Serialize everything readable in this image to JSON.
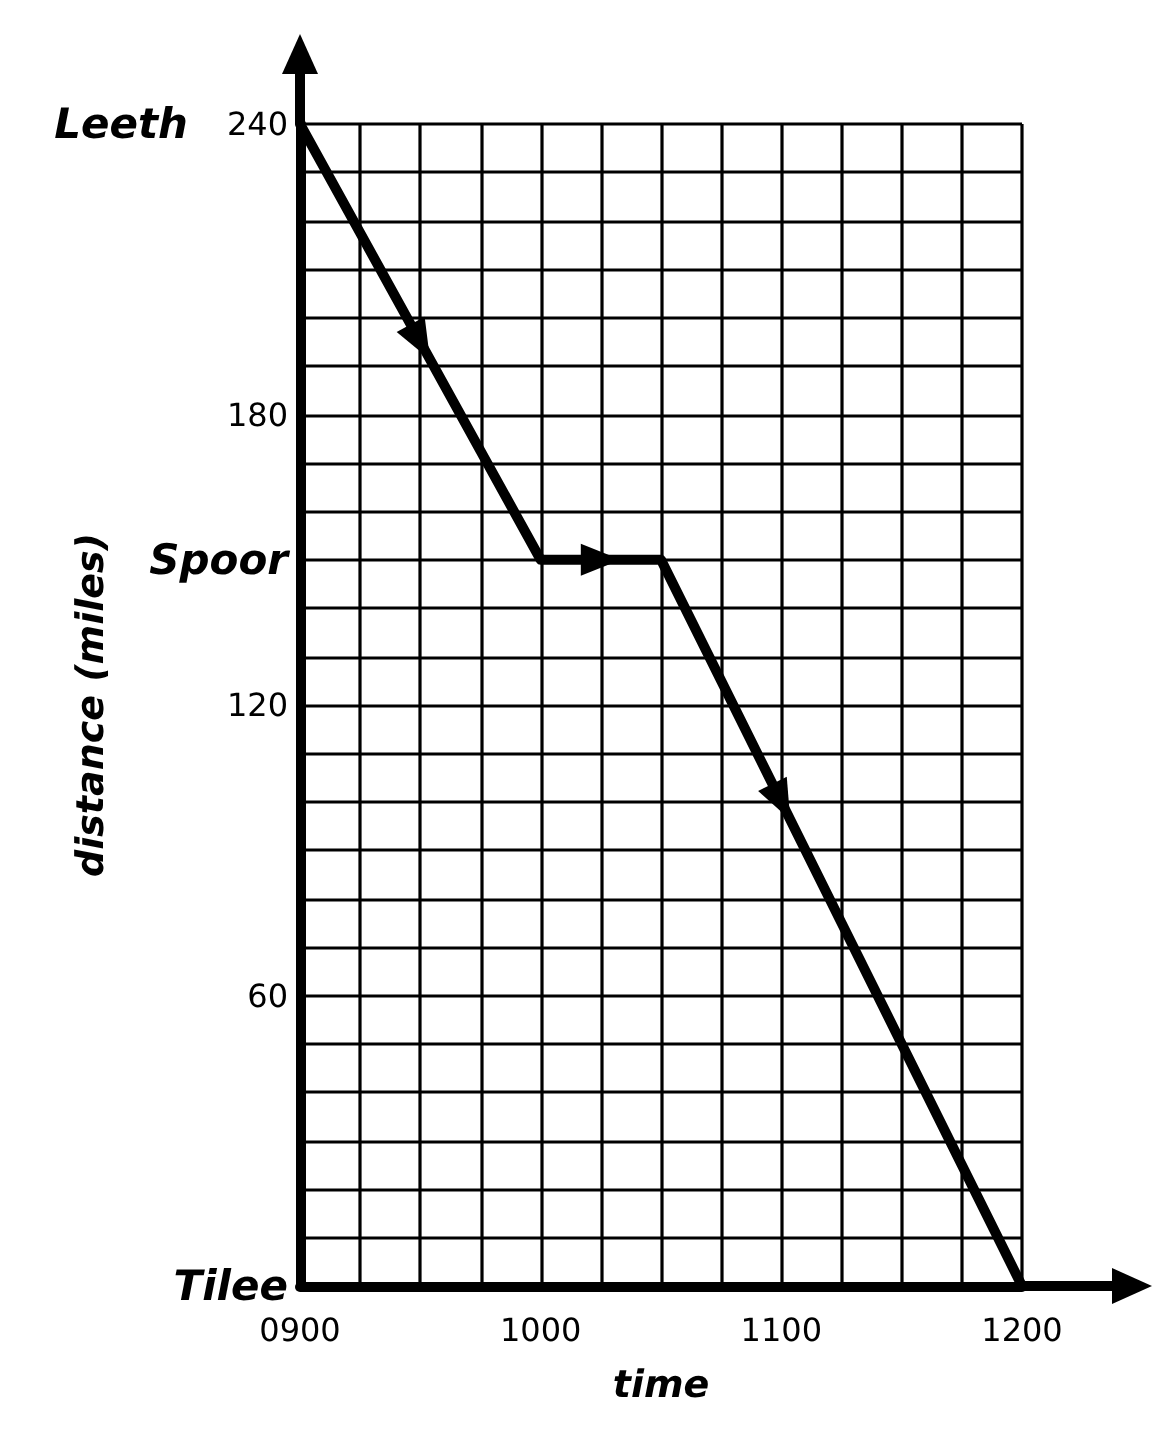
{
  "chart_data": {
    "type": "line",
    "xlabel": "time",
    "ylabel": "distance (miles)",
    "categories": [
      "0900",
      null,
      null,
      null,
      "1000",
      null,
      null,
      null,
      "1100",
      null,
      null,
      null,
      "1200"
    ],
    "series": [
      {
        "color": "#000000",
        "values": [
          240,
          217.5,
          195,
          172.5,
          150,
          150,
          150,
          125,
          100,
          75,
          50,
          25,
          0
        ]
      }
    ],
    "ylim": [
      0,
      240
    ],
    "yticks": [
      {
        "value": 0,
        "label": "Tilee"
      },
      {
        "value": 10,
        "label": null
      },
      {
        "value": 20,
        "label": null
      },
      {
        "value": 30,
        "label": null
      },
      {
        "value": 40,
        "label": null
      },
      {
        "value": 50,
        "label": null
      },
      60,
      {
        "value": 70,
        "label": null
      },
      {
        "value": 80,
        "label": null
      },
      {
        "value": 90,
        "label": null
      },
      {
        "value": 100,
        "label": null
      },
      {
        "value": 110,
        "label": null
      },
      120,
      {
        "value": 130,
        "label": null
      },
      {
        "value": 140,
        "label": null
      },
      {
        "value": 150,
        "label": "Spoor"
      },
      {
        "value": 160,
        "label": null
      },
      {
        "value": 170,
        "label": null
      },
      180,
      {
        "value": 190,
        "label": null
      },
      {
        "value": 200,
        "label": null
      },
      {
        "value": 210,
        "label": null
      },
      {
        "value": 220,
        "label": null
      },
      {
        "value": 230,
        "label": null
      },
      240
    ],
    "annotations": [
      {
        "text": "Leeth",
        "x": "0900",
        "y": 240
      }
    ],
    "grid": true,
    "marker": "none",
    "line_style": "solid"
  }
}
